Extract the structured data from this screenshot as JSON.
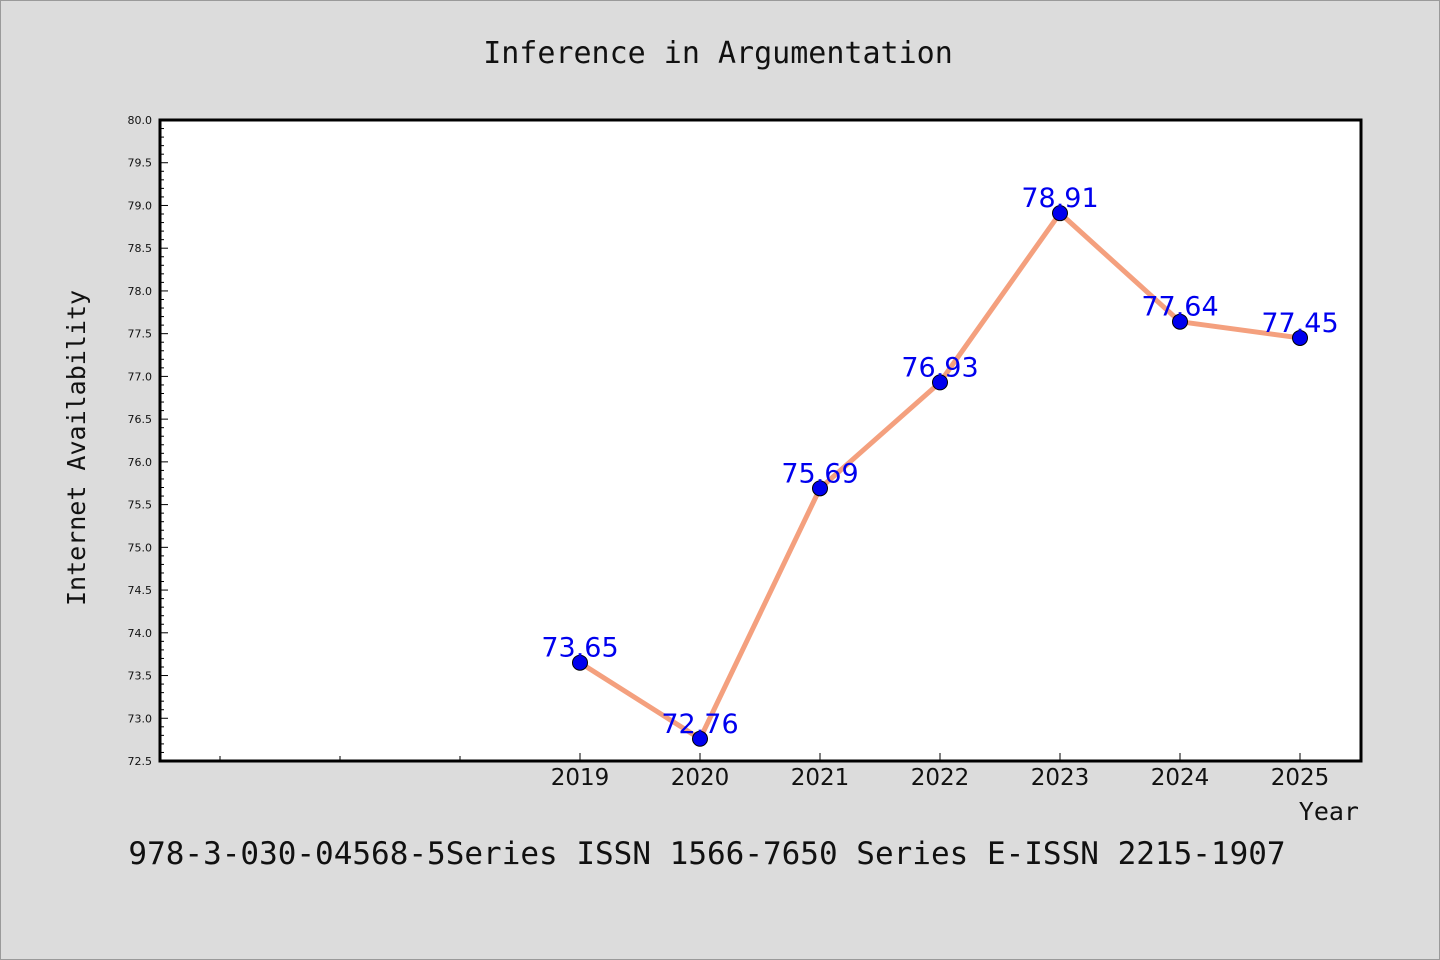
{
  "chart_data": {
    "type": "line",
    "title": "Inference in Argumentation",
    "xlabel": "Year",
    "ylabel": "Internet Availability",
    "categories": [
      "2019",
      "2020",
      "2021",
      "2022",
      "2023",
      "2024",
      "2025"
    ],
    "series": [
      {
        "values": [
          73.65,
          72.76,
          75.69,
          76.93,
          78.91,
          77.64,
          77.45
        ]
      }
    ],
    "data_labels": [
      "73.65",
      "72.76",
      "75.69",
      "76.93",
      "78.91",
      "77.64",
      "77.45"
    ],
    "ylim": [
      72.5,
      80.0
    ],
    "yticks": [
      "72.5",
      "73.0",
      "73.5",
      "74.0",
      "74.5",
      "75.0",
      "75.5",
      "76.0",
      "76.5",
      "77.0",
      "77.5",
      "78.0",
      "78.5",
      "79.0",
      "79.5",
      "80.0"
    ],
    "grid": false,
    "legend": "none",
    "colors": {
      "line": "#f4a07e",
      "marker": "#0000ee",
      "data_label": "#0000ee",
      "plot_background": "#ffffff",
      "page_background": "#dcdcdc"
    }
  },
  "footer_text": "978-3-030-04568-5Series ISSN 1566-7650 Series E-ISSN 2215-1907"
}
